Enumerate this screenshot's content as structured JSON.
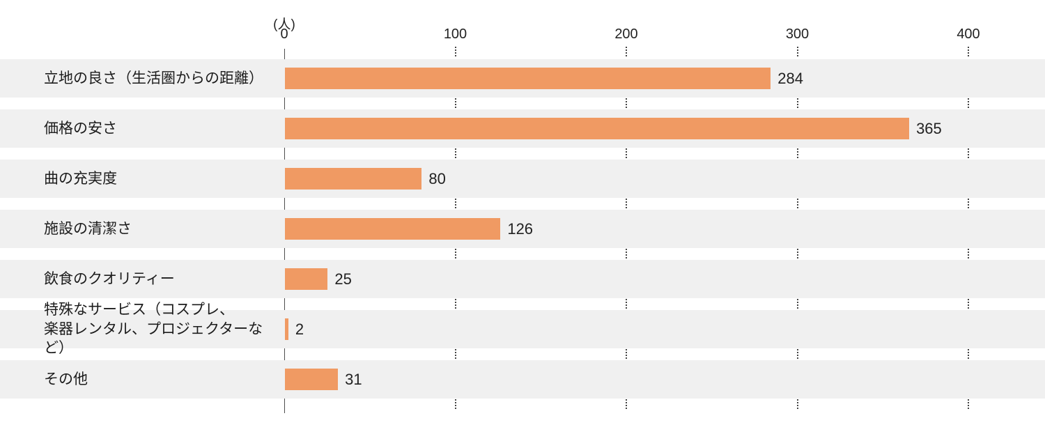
{
  "chart_data": {
    "type": "bar",
    "orientation": "horizontal",
    "title": "",
    "unit_label": "(人)",
    "xlabel": "",
    "ylabel": "",
    "categories": [
      "立地の良さ（生活圏からの距離）",
      "価格の安さ",
      "曲の充実度",
      "施設の清潔さ",
      "飲食のクオリティー",
      "特殊なサービス（コスプレ、\n楽器レンタル、プロジェクターなど）",
      "その他"
    ],
    "values": [
      284,
      365,
      80,
      126,
      25,
      2,
      31
    ],
    "ticks": [
      0,
      100,
      200,
      300,
      400
    ],
    "xlim": [
      0,
      443
    ],
    "grid": "dotted vertical segments in row gaps",
    "legend": "none",
    "colors": {
      "bar": "#f09a63",
      "row_stripe": "#f0f0f0",
      "axis_line": "#4d4d4d",
      "grid_dots": "#444444",
      "text": "#222222"
    }
  }
}
